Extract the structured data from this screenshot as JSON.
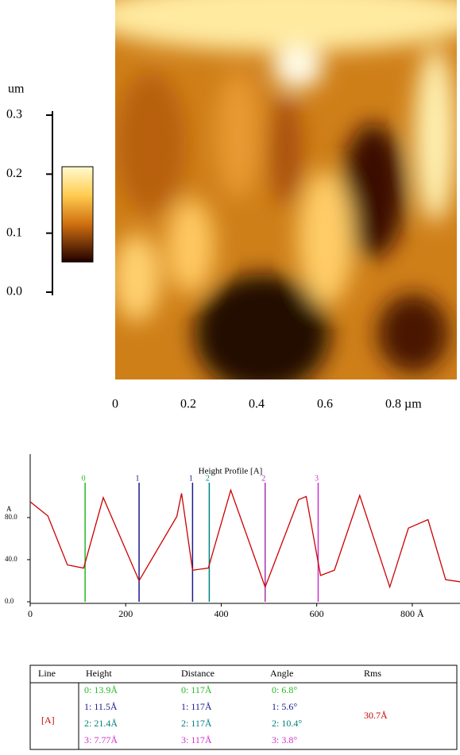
{
  "image": {
    "scale_label": "um",
    "scale_ylim": [
      0,
      0.3
    ],
    "scale_ticks": [
      {
        "value": 0,
        "label": "0.0"
      },
      0.1,
      0.2,
      0.3
    ],
    "xlim": [
      0,
      1
    ],
    "xticks": [
      0,
      0.2,
      0.4,
      0.6,
      0.8
    ],
    "xtick_labels": [
      "0",
      "0.2",
      "0.4",
      "0.6",
      "0.8 µm"
    ]
  },
  "chart_data": {
    "type": "line",
    "title": "Height Profile [A]",
    "y_label": "A",
    "x": [
      0,
      37,
      78,
      112,
      153,
      228,
      307,
      317,
      340,
      373,
      420,
      492,
      562,
      578,
      608,
      637,
      690,
      753,
      792,
      833,
      870,
      900
    ],
    "series": [
      {
        "name": "[A]",
        "color": "#cc0000",
        "values": [
          95,
          81.5,
          35,
          32,
          99,
          20,
          81,
          103,
          30,
          32,
          106,
          14,
          97,
          100,
          25,
          30,
          101,
          14,
          70,
          78,
          21,
          19
        ]
      }
    ],
    "xlim": [
      0,
      900
    ],
    "ylim": [
      0,
      138
    ],
    "xticks": [
      0,
      200,
      400,
      600,
      {
        "value": 800,
        "label": "800 Å"
      }
    ],
    "yticks": [
      {
        "value": 0,
        "label": "0.0"
      },
      {
        "value": 40,
        "label": "40.0"
      },
      {
        "value": 80,
        "label": "80.0"
      }
    ],
    "markers": [
      {
        "label": "0",
        "x": 115,
        "color": "#22bb22"
      },
      {
        "label": "1",
        "x": 228,
        "color": "#1a1a8c"
      },
      {
        "label": "1",
        "x": 340,
        "color": "#1a1a8c"
      },
      {
        "label": "2",
        "x": 375,
        "color": "#008080"
      },
      {
        "label": "2",
        "x": 492,
        "color": "#aa33aa"
      },
      {
        "label": "3",
        "x": 603,
        "color": "#cc33cc"
      }
    ]
  },
  "table": {
    "headers": [
      "Line",
      "Height",
      "Distance",
      "Angle",
      "Rms"
    ],
    "line": "[A]",
    "rms": "30.7Å",
    "row_colors": [
      "#22bb22",
      "#1a1a8c",
      "#008080",
      "#cc33cc"
    ],
    "height": [
      "0: 13.9Å",
      "1: 11.5Å",
      "2: 21.4Å",
      "3: 7.77Å"
    ],
    "distance": [
      "0: 117Å",
      "1: 117Å",
      "2: 117Å",
      "3: 117Å"
    ],
    "angle": [
      "0: 6.8°",
      "1: 5.6°",
      "2: 10.4°",
      "3: 3.8°"
    ]
  }
}
